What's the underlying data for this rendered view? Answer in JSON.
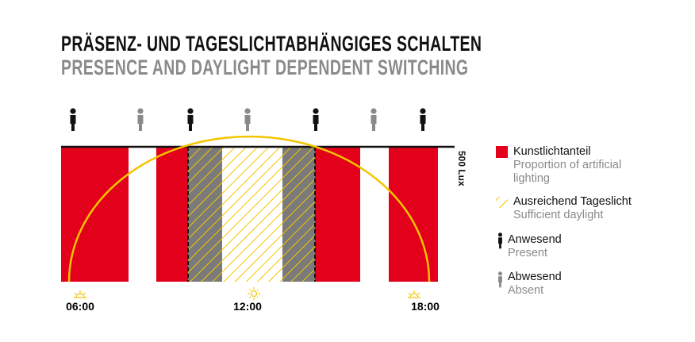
{
  "title": {
    "de": "PRÄSENZ- UND TAGESLICHTABHÄNGIGES SCHALTEN",
    "en": "PRESENCE AND DAYLIGHT DEPENDENT SWITCHING"
  },
  "threshold_label": "500 Lux",
  "colors": {
    "artificial": "#e2001a",
    "daylight": "#f5c400",
    "present": "#111111",
    "absent": "#8a8a8a",
    "overlap": "#7a7a7a"
  },
  "presence_sequence": [
    "present",
    "absent",
    "present",
    "absent",
    "present",
    "absent",
    "present"
  ],
  "time_labels": [
    {
      "label": "06:00",
      "icon": "sunrise-icon"
    },
    {
      "label": "12:00",
      "icon": "sun-icon"
    },
    {
      "label": "18:00",
      "icon": "sunset-icon"
    }
  ],
  "legend": [
    {
      "de": "Kunstlichtanteil",
      "en": "Proportion of artificial lighting",
      "icon": "red-square"
    },
    {
      "de": "Ausreichend Tageslicht",
      "en": "Sufficient daylight",
      "icon": "yellow-hatch"
    },
    {
      "de": "Anwesend",
      "en": "Present",
      "icon": "person-present"
    },
    {
      "de": "Abwesend",
      "en": "Absent",
      "icon": "person-absent"
    }
  ]
}
